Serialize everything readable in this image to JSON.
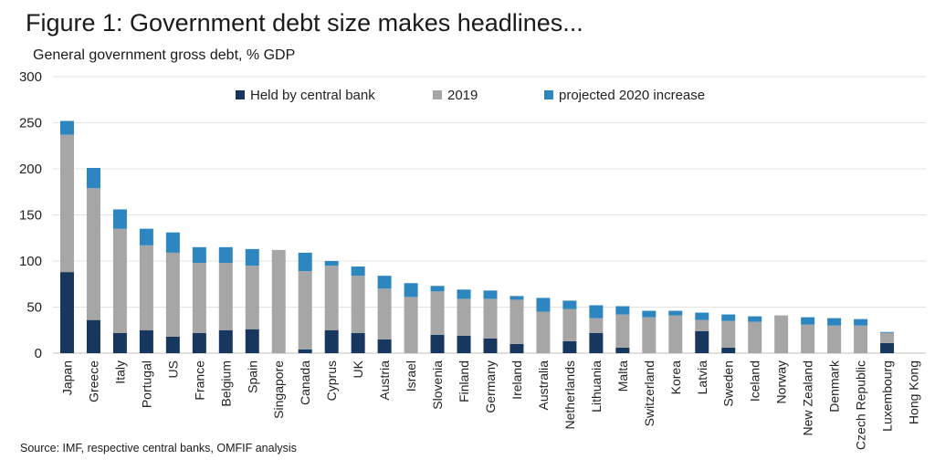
{
  "figure": {
    "title": "Figure 1: Government debt size makes headlines...",
    "source": "Source: IMF, respective central banks, OMFIF analysis"
  },
  "chart_data": {
    "type": "bar",
    "stacked": true,
    "title": "Figure 1: Government debt size makes headlines...",
    "subtitle": "General government gross debt, % GDP",
    "ylim": [
      0,
      300
    ],
    "yticks": [
      0,
      50,
      100,
      150,
      200,
      250,
      300
    ],
    "grid": true,
    "legend_position": "top",
    "categories": [
      "Japan",
      "Greece",
      "Italy",
      "Portugal",
      "US",
      "France",
      "Belgium",
      "Spain",
      "Singapore",
      "Canada",
      "Cyprus",
      "UK",
      "Austria",
      "Israel",
      "Slovenia",
      "Finland",
      "Germany",
      "Ireland",
      "Australia",
      "Netherlands",
      "Lithuania",
      "Malta",
      "Switzerland",
      "Korea",
      "Latvia",
      "Sweden",
      "Iceland",
      "Norway",
      "New Zealand",
      "Denmark",
      "Czech Republic",
      "Luxembourg",
      "Hong Kong"
    ],
    "series": [
      {
        "name": "Held by central bank",
        "color": "#17375e",
        "values": [
          88,
          36,
          22,
          25,
          18,
          22,
          25,
          26,
          0,
          4,
          25,
          22,
          15,
          0,
          20,
          19,
          16,
          10,
          0,
          13,
          22,
          6,
          0,
          0,
          24,
          6,
          0,
          0,
          0,
          0,
          0,
          11,
          0
        ]
      },
      {
        "name": "2019",
        "color": "#a6a6a6",
        "values": [
          149,
          143,
          113,
          92,
          91,
          76,
          73,
          69,
          112,
          85,
          70,
          62,
          55,
          61,
          47,
          40,
          43,
          48,
          45,
          35,
          16,
          36,
          39,
          41,
          12,
          29,
          34,
          41,
          31,
          30,
          30,
          11,
          0
        ]
      },
      {
        "name": "projected 2020 increase",
        "color": "#2e86c1",
        "values": [
          15,
          22,
          21,
          18,
          22,
          17,
          17,
          18,
          0,
          20,
          5,
          10,
          14,
          15,
          6,
          10,
          9,
          4,
          15,
          9,
          14,
          9,
          7,
          5,
          8,
          7,
          6,
          0,
          8,
          8,
          7,
          1,
          0
        ]
      }
    ]
  }
}
